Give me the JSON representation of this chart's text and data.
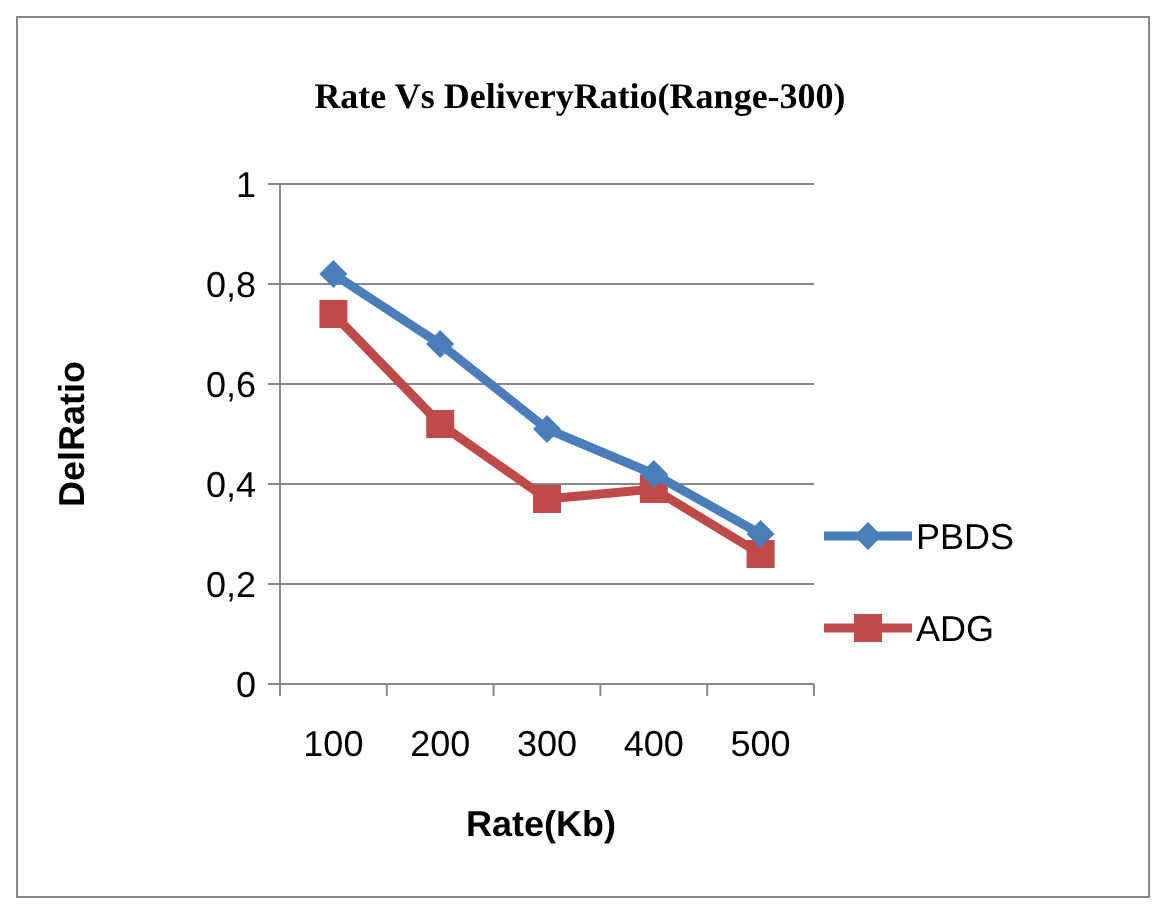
{
  "chart_data": {
    "type": "line",
    "title": "Rate Vs DeliveryRatio(Range-300)",
    "xlabel": "Rate(Kb)",
    "ylabel": "DelRatio",
    "categories": [
      "100",
      "200",
      "300",
      "400",
      "500"
    ],
    "series": [
      {
        "name": "PBDS",
        "color": "#4a7ebb",
        "marker": "diamond",
        "values": [
          0.82,
          0.68,
          0.51,
          0.42,
          0.3
        ]
      },
      {
        "name": "ADG",
        "color": "#be4b48",
        "marker": "square",
        "values": [
          0.74,
          0.52,
          0.37,
          0.39,
          0.26
        ]
      }
    ],
    "ylim": [
      0,
      1
    ],
    "yticks": [
      {
        "value": 0,
        "label": "0"
      },
      {
        "value": 0.2,
        "label": "0,2"
      },
      {
        "value": 0.4,
        "label": "0,4"
      },
      {
        "value": 0.6,
        "label": "0,6"
      },
      {
        "value": 0.8,
        "label": "0,8"
      },
      {
        "value": 1,
        "label": "1"
      }
    ],
    "grid": "y",
    "legend": "right",
    "line_style": "solid"
  }
}
